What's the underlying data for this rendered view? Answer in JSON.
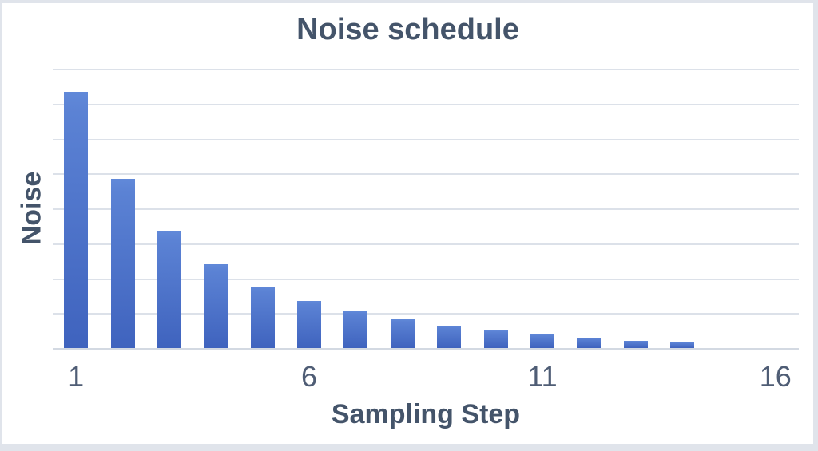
{
  "chart_data": {
    "type": "bar",
    "title": "Noise schedule",
    "xlabel": "Sampling Step",
    "ylabel": "Noise",
    "x": [
      1,
      2,
      3,
      4,
      5,
      6,
      7,
      8,
      9,
      10,
      11,
      12,
      13,
      14
    ],
    "values": [
      7.34,
      4.85,
      3.34,
      2.4,
      1.76,
      1.35,
      1.05,
      0.82,
      0.64,
      0.5,
      0.39,
      0.29,
      0.21,
      0.16
    ],
    "x_axis": {
      "min": 1,
      "max": 16,
      "tick_values": [
        1,
        6,
        11,
        16
      ],
      "tick_labels": [
        "1",
        "6",
        "11",
        "16"
      ]
    },
    "y_axis": {
      "min": 0,
      "max": 8,
      "tick_labels": [],
      "gridlines": true,
      "gridline_count": 8
    },
    "legend": "none",
    "colors": {
      "bar_top": "#6189d9",
      "bar_mid": "#5b82d4",
      "bar_bottom": "#3f63be",
      "gridline": "#dce1e9",
      "axis_line": "#d3d9e2",
      "title_text": "#44546a",
      "tick_text": "#4f5d75",
      "frame_background": "#e0e4eb",
      "canvas_background": "#ffffff"
    }
  }
}
